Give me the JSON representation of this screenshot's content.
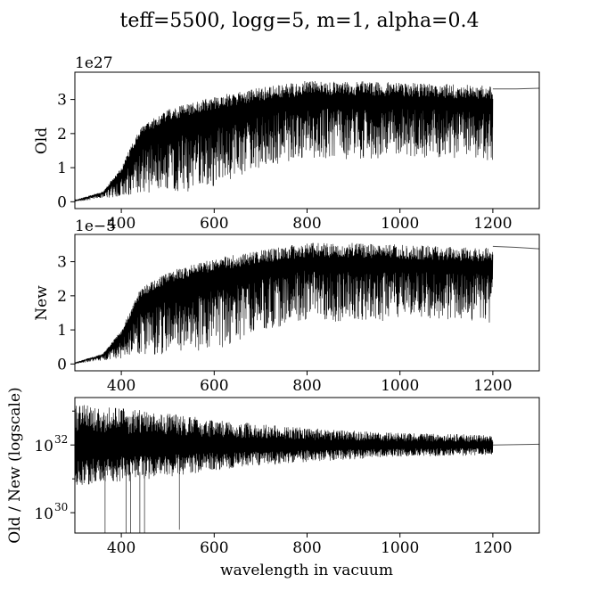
{
  "figure": {
    "title": "teff=5500, logg=5, m=1, alpha=0.4",
    "xlabel": "wavelength in vacuum"
  },
  "chart_data": [
    {
      "type": "line",
      "name": "old-panel",
      "ylabel": "Old",
      "offset_text": "1e27",
      "xlim": [
        300,
        1300
      ],
      "ylim": [
        -0.2,
        3.8
      ],
      "xticks": [
        400,
        600,
        800,
        1000,
        1200
      ],
      "yticks": [
        0,
        1,
        2,
        3
      ],
      "series": [
        {
          "name": "spectrum",
          "color": "#000000",
          "x": [
            300,
            360,
            400,
            440,
            500,
            560,
            620,
            700,
            800,
            900,
            1000,
            1100,
            1200
          ],
          "upper": [
            0.05,
            0.3,
            1.0,
            2.2,
            2.7,
            2.95,
            3.15,
            3.35,
            3.55,
            3.55,
            3.5,
            3.45,
            3.4
          ],
          "lower": [
            0.0,
            0.1,
            0.15,
            0.25,
            0.3,
            0.3,
            0.5,
            1.0,
            1.3,
            1.2,
            1.3,
            1.3,
            1.2
          ]
        },
        {
          "name": "continuum-tail",
          "color": "#555555",
          "x": [
            1200,
            1250,
            1300
          ],
          "y": [
            3.31,
            3.31,
            3.33
          ]
        }
      ]
    },
    {
      "type": "line",
      "name": "new-panel",
      "ylabel": "New",
      "offset_text": "1e−5",
      "xlim": [
        300,
        1300
      ],
      "ylim": [
        -0.2,
        3.8
      ],
      "xticks": [
        400,
        600,
        800,
        1000,
        1200
      ],
      "yticks": [
        0,
        1,
        2,
        3
      ],
      "series": [
        {
          "name": "spectrum",
          "color": "#000000",
          "x": [
            300,
            360,
            400,
            440,
            500,
            560,
            620,
            700,
            800,
            900,
            1000,
            1100,
            1200
          ],
          "upper": [
            0.05,
            0.3,
            1.0,
            2.2,
            2.7,
            2.95,
            3.15,
            3.35,
            3.55,
            3.55,
            3.5,
            3.45,
            3.4
          ],
          "lower": [
            0.0,
            0.1,
            0.15,
            0.25,
            0.3,
            0.3,
            0.5,
            0.9,
            1.3,
            1.2,
            1.3,
            1.3,
            1.2
          ]
        },
        {
          "name": "continuum-tail",
          "color": "#555555",
          "x": [
            1200,
            1250,
            1300
          ],
          "y": [
            3.45,
            3.42,
            3.38
          ]
        }
      ]
    },
    {
      "type": "line",
      "name": "ratio-panel",
      "ylabel": "Old / New (logscale)",
      "yscale": "log",
      "xlim": [
        300,
        1300
      ],
      "ylim_log10": [
        29.4,
        33.4
      ],
      "xticks": [
        400,
        600,
        800,
        1000,
        1200
      ],
      "yticks_log10": [
        30,
        32
      ],
      "ytick_labels": [
        {
          "base": "10",
          "exp": "30"
        },
        {
          "base": "10",
          "exp": "32"
        }
      ],
      "series": [
        {
          "name": "ratio",
          "color": "#000000",
          "center_log10": 32.0,
          "x": [
            300,
            400,
            500,
            600,
            800,
            1000,
            1200
          ],
          "half_width_log10": [
            1.2,
            1.1,
            0.95,
            0.75,
            0.5,
            0.35,
            0.3
          ]
        },
        {
          "name": "continuum-tail",
          "color": "#555555",
          "x": [
            1200,
            1300
          ],
          "y_log10": [
            32.0,
            32.02
          ]
        }
      ]
    }
  ]
}
